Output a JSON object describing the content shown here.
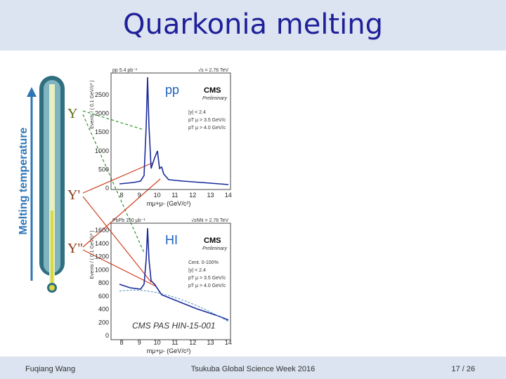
{
  "header": {
    "title": "Quarkonia melting"
  },
  "footer": {
    "author": "Fuqiang Wang",
    "event": "Tsukuba Global Science Week 2016",
    "page": "17 / 26"
  },
  "thermometer": {
    "label": "Melting temperature"
  },
  "states": [
    "Υ",
    "Υ'",
    "Υ''"
  ],
  "plots": [
    {
      "system": "pp",
      "lumi": "pp 5.4 pb⁻¹",
      "energy": "√s = 2.76 TeV",
      "experiment": "CMS",
      "status": "Preliminary",
      "cuts": [
        "|y| < 2.4",
        "pT μ > 3.5 GeV/c",
        "pT μ > 4.0 GeV/c"
      ],
      "yticks": [
        "0",
        "500",
        "1000",
        "1500",
        "2000",
        "2500"
      ],
      "xticks": [
        "8",
        "9",
        "10",
        "11",
        "12",
        "13",
        "14"
      ],
      "xlabel": "mμ+μ- (GeV/c²)",
      "ylabel": "Events / ( 0.1 GeV/c² )"
    },
    {
      "system": "HI",
      "lumi": "PbPb 150 μb⁻¹",
      "energy": "√sNN = 2.76 TeV",
      "experiment": "CMS",
      "status": "Preliminary",
      "cuts": [
        "Cent. 0-100%",
        "|y| < 2.4",
        "pT μ > 3.5 GeV/c",
        "pT μ > 4.0 GeV/c"
      ],
      "yticks": [
        "0",
        "200",
        "400",
        "600",
        "800",
        "1000",
        "1200",
        "1400",
        "1600"
      ],
      "xticks": [
        "8",
        "9",
        "10",
        "11",
        "12",
        "13",
        "14"
      ],
      "xlabel": "mμ+μ- (GeV/c²)",
      "ylabel": "Events / ( 0.1 GeV/c² )",
      "note": "CMS PAS HIN-15-001"
    }
  ]
}
